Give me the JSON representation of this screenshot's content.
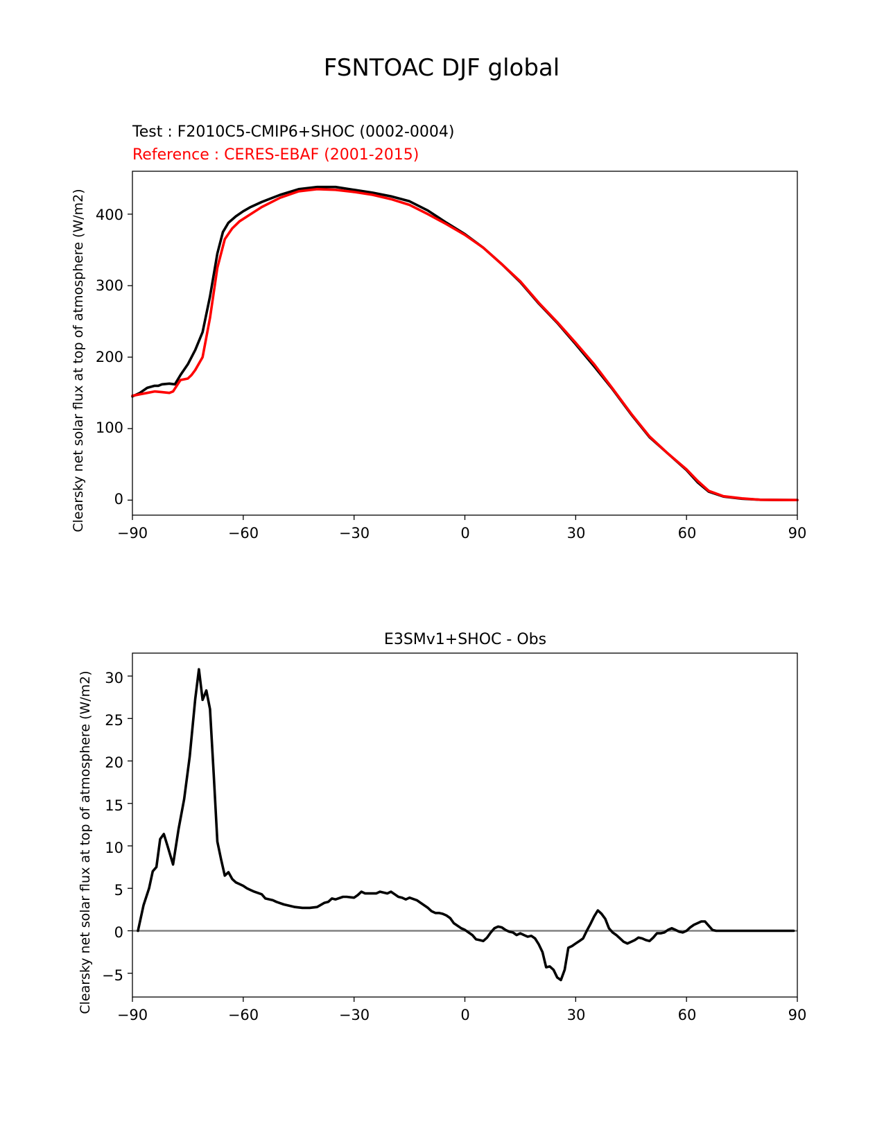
{
  "figure": {
    "title": "FSNTOAC DJF global"
  },
  "chart_data": [
    {
      "type": "line",
      "test_label": "Test : F2010C5-CMIP6+SHOC (0002-0004)",
      "ref_label": "Reference : CERES-EBAF (2001-2015)",
      "ylabel": "Clearsky net solar flux at top of atmosphere (W/m2)",
      "xlim": [
        -90,
        90
      ],
      "ylim": [
        -21,
        460
      ],
      "xticks": [
        -90,
        -60,
        -30,
        0,
        30,
        60,
        90
      ],
      "xtick_labels": [
        "−90",
        "−60",
        "−30",
        "0",
        "30",
        "60",
        "90"
      ],
      "yticks": [
        0,
        100,
        200,
        300,
        400
      ],
      "ytick_labels": [
        "0",
        "100",
        "200",
        "300",
        "400"
      ],
      "grid": false,
      "series": [
        {
          "name": "Test : F2010C5-CMIP6+SHOC (0002-0004)",
          "color": "#000000",
          "x": [
            -90,
            -88,
            -86,
            -84,
            -83,
            -82,
            -80,
            -78.5,
            -77,
            -75,
            -73,
            -71,
            -69,
            -67,
            -65.5,
            -64,
            -62,
            -60,
            -58,
            -55,
            -50,
            -45,
            -40,
            -35,
            -30,
            -25,
            -20,
            -15,
            -10,
            -5,
            0,
            5,
            10,
            15,
            20,
            25,
            30,
            35,
            40,
            45,
            50,
            55,
            60,
            63,
            66,
            70,
            75,
            80,
            85,
            90
          ],
          "y": [
            145,
            150,
            157,
            160,
            160,
            162,
            163,
            162,
            175,
            190,
            210,
            235,
            285,
            345,
            375,
            388,
            397,
            404,
            410,
            417,
            427,
            435,
            438,
            438,
            434,
            430,
            425,
            418,
            405,
            388,
            372,
            353,
            330,
            305,
            275,
            248,
            218,
            187,
            155,
            120,
            88,
            65,
            42,
            25,
            12,
            5,
            2,
            0.5,
            0.2,
            0.1
          ]
        },
        {
          "name": "Reference : CERES-EBAF (2001-2015)",
          "color": "#ff0000",
          "x": [
            -90,
            -88,
            -86,
            -84,
            -82,
            -80,
            -79,
            -78,
            -77,
            -75,
            -74,
            -73,
            -71,
            -69,
            -67,
            -65,
            -63,
            -61,
            -58,
            -55,
            -50,
            -45,
            -40,
            -35,
            -30,
            -25,
            -20,
            -15,
            -10,
            -5,
            0,
            5,
            10,
            15,
            20,
            25,
            30,
            35,
            40,
            45,
            50,
            55,
            60,
            63,
            66,
            70,
            75,
            80,
            85,
            90
          ],
          "y": [
            146,
            148,
            150,
            152,
            151,
            150,
            152,
            160,
            168,
            170,
            175,
            182,
            200,
            255,
            325,
            365,
            380,
            390,
            400,
            410,
            423,
            432,
            435,
            434,
            431,
            427,
            421,
            413,
            400,
            386,
            371,
            353,
            330,
            306,
            276,
            249,
            220,
            190,
            156,
            121,
            89,
            65,
            43,
            27,
            13,
            5.5,
            2.5,
            0.5,
            0.2,
            0.1
          ]
        }
      ]
    },
    {
      "type": "line",
      "title": "E3SMv1+SHOC - Obs",
      "ylabel": "Clearsky net solar flux at top of atmosphere (W/m2)",
      "xlim": [
        -90,
        90
      ],
      "ylim": [
        -7.8,
        32.7
      ],
      "xticks": [
        -90,
        -60,
        -30,
        0,
        30,
        60,
        90
      ],
      "xtick_labels": [
        "−90",
        "−60",
        "−30",
        "0",
        "30",
        "60",
        "90"
      ],
      "yticks": [
        -5,
        0,
        5,
        10,
        15,
        20,
        25,
        30
      ],
      "ytick_labels": [
        "−5",
        "0",
        "5",
        "10",
        "15",
        "20",
        "25",
        "30"
      ],
      "grid": false,
      "zero_line_color": "#808080",
      "series": [
        {
          "color": "#000000",
          "x": [
            -88.5,
            -87,
            -85.5,
            -84.5,
            -83.5,
            -82.5,
            -81.5,
            -80.5,
            -79,
            -77.5,
            -76,
            -74.5,
            -73,
            -72,
            -71,
            -70,
            -69,
            -68,
            -67,
            -66,
            -65,
            -64,
            -63,
            -62,
            -61,
            -60,
            -59,
            -58,
            -57,
            -55,
            -54,
            -52,
            -51,
            -49,
            -48,
            -46,
            -44,
            -42,
            -40,
            -38,
            -37,
            -36,
            -35,
            -33,
            -32,
            -30,
            -29,
            -28,
            -27,
            -25,
            -24,
            -23,
            -21,
            -20,
            -19,
            -18,
            -17,
            -16,
            -15,
            -13,
            -12,
            -11,
            -10,
            -9,
            -8,
            -7,
            -6,
            -5,
            -4,
            -3,
            -2,
            -1,
            0,
            1,
            2,
            3,
            4,
            5,
            6,
            7,
            8,
            9,
            10,
            11,
            12,
            13,
            14,
            15,
            16,
            17,
            18,
            19,
            20,
            21,
            22,
            23,
            24,
            25,
            26,
            27,
            28,
            29,
            30,
            31,
            32,
            33,
            34,
            35,
            36,
            37,
            38,
            39,
            40,
            41,
            42,
            43,
            44,
            45,
            46,
            47,
            48,
            49,
            50,
            51,
            52,
            53,
            54,
            55,
            56,
            57,
            58,
            59,
            60,
            61,
            62,
            63,
            64,
            65,
            66,
            67,
            68,
            69,
            70,
            71,
            72,
            73,
            74,
            75,
            76,
            77,
            78,
            79,
            80,
            81,
            82,
            83,
            84,
            85,
            86,
            87,
            88,
            89
          ],
          "y": [
            0,
            3,
            5,
            7,
            7.5,
            10.8,
            11.4,
            10,
            7.8,
            12,
            15.5,
            20.5,
            27.3,
            30.8,
            27.2,
            28.3,
            26.1,
            18.5,
            10.5,
            8.4,
            6.5,
            6.9,
            6.1,
            5.7,
            5.5,
            5.3,
            5.0,
            4.8,
            4.6,
            4.3,
            3.8,
            3.6,
            3.4,
            3.1,
            3.0,
            2.8,
            2.7,
            2.7,
            2.8,
            3.3,
            3.4,
            3.8,
            3.7,
            4.0,
            4.0,
            3.9,
            4.2,
            4.6,
            4.4,
            4.4,
            4.4,
            4.6,
            4.4,
            4.6,
            4.3,
            4.0,
            3.9,
            3.7,
            3.9,
            3.6,
            3.3,
            3.0,
            2.7,
            2.3,
            2.1,
            2.1,
            2.0,
            1.8,
            1.5,
            0.9,
            0.6,
            0.3,
            0.1,
            -0.2,
            -0.5,
            -1.0,
            -1.1,
            -1.2,
            -0.8,
            -0.2,
            0.3,
            0.5,
            0.4,
            0.1,
            -0.1,
            -0.2,
            -0.5,
            -0.3,
            -0.5,
            -0.7,
            -0.6,
            -0.9,
            -1.6,
            -2.5,
            -4.3,
            -4.2,
            -4.6,
            -5.5,
            -5.8,
            -4.6,
            -2.0,
            -1.8,
            -1.5,
            -1.2,
            -0.9,
            0.0,
            0.8,
            1.7,
            2.4,
            2.0,
            1.4,
            0.3,
            -0.2,
            -0.5,
            -0.9,
            -1.3,
            -1.5,
            -1.3,
            -1.1,
            -0.8,
            -0.9,
            -1.1,
            -1.2,
            -0.8,
            -0.3,
            -0.3,
            -0.2,
            0.1,
            0.3,
            0.1,
            -0.1,
            -0.2,
            0.0,
            0.4,
            0.7,
            0.9,
            1.1,
            1.1,
            0.6,
            0.1,
            0.0,
            0.0,
            0.0,
            0.0,
            0.0,
            0.0,
            0.0,
            0.0,
            0.0,
            0.0,
            0.0,
            0.0,
            0.0,
            0.0,
            0.0,
            0.0,
            0.0,
            0.0,
            0.0,
            0.0,
            0.0,
            0.0
          ]
        }
      ]
    }
  ]
}
